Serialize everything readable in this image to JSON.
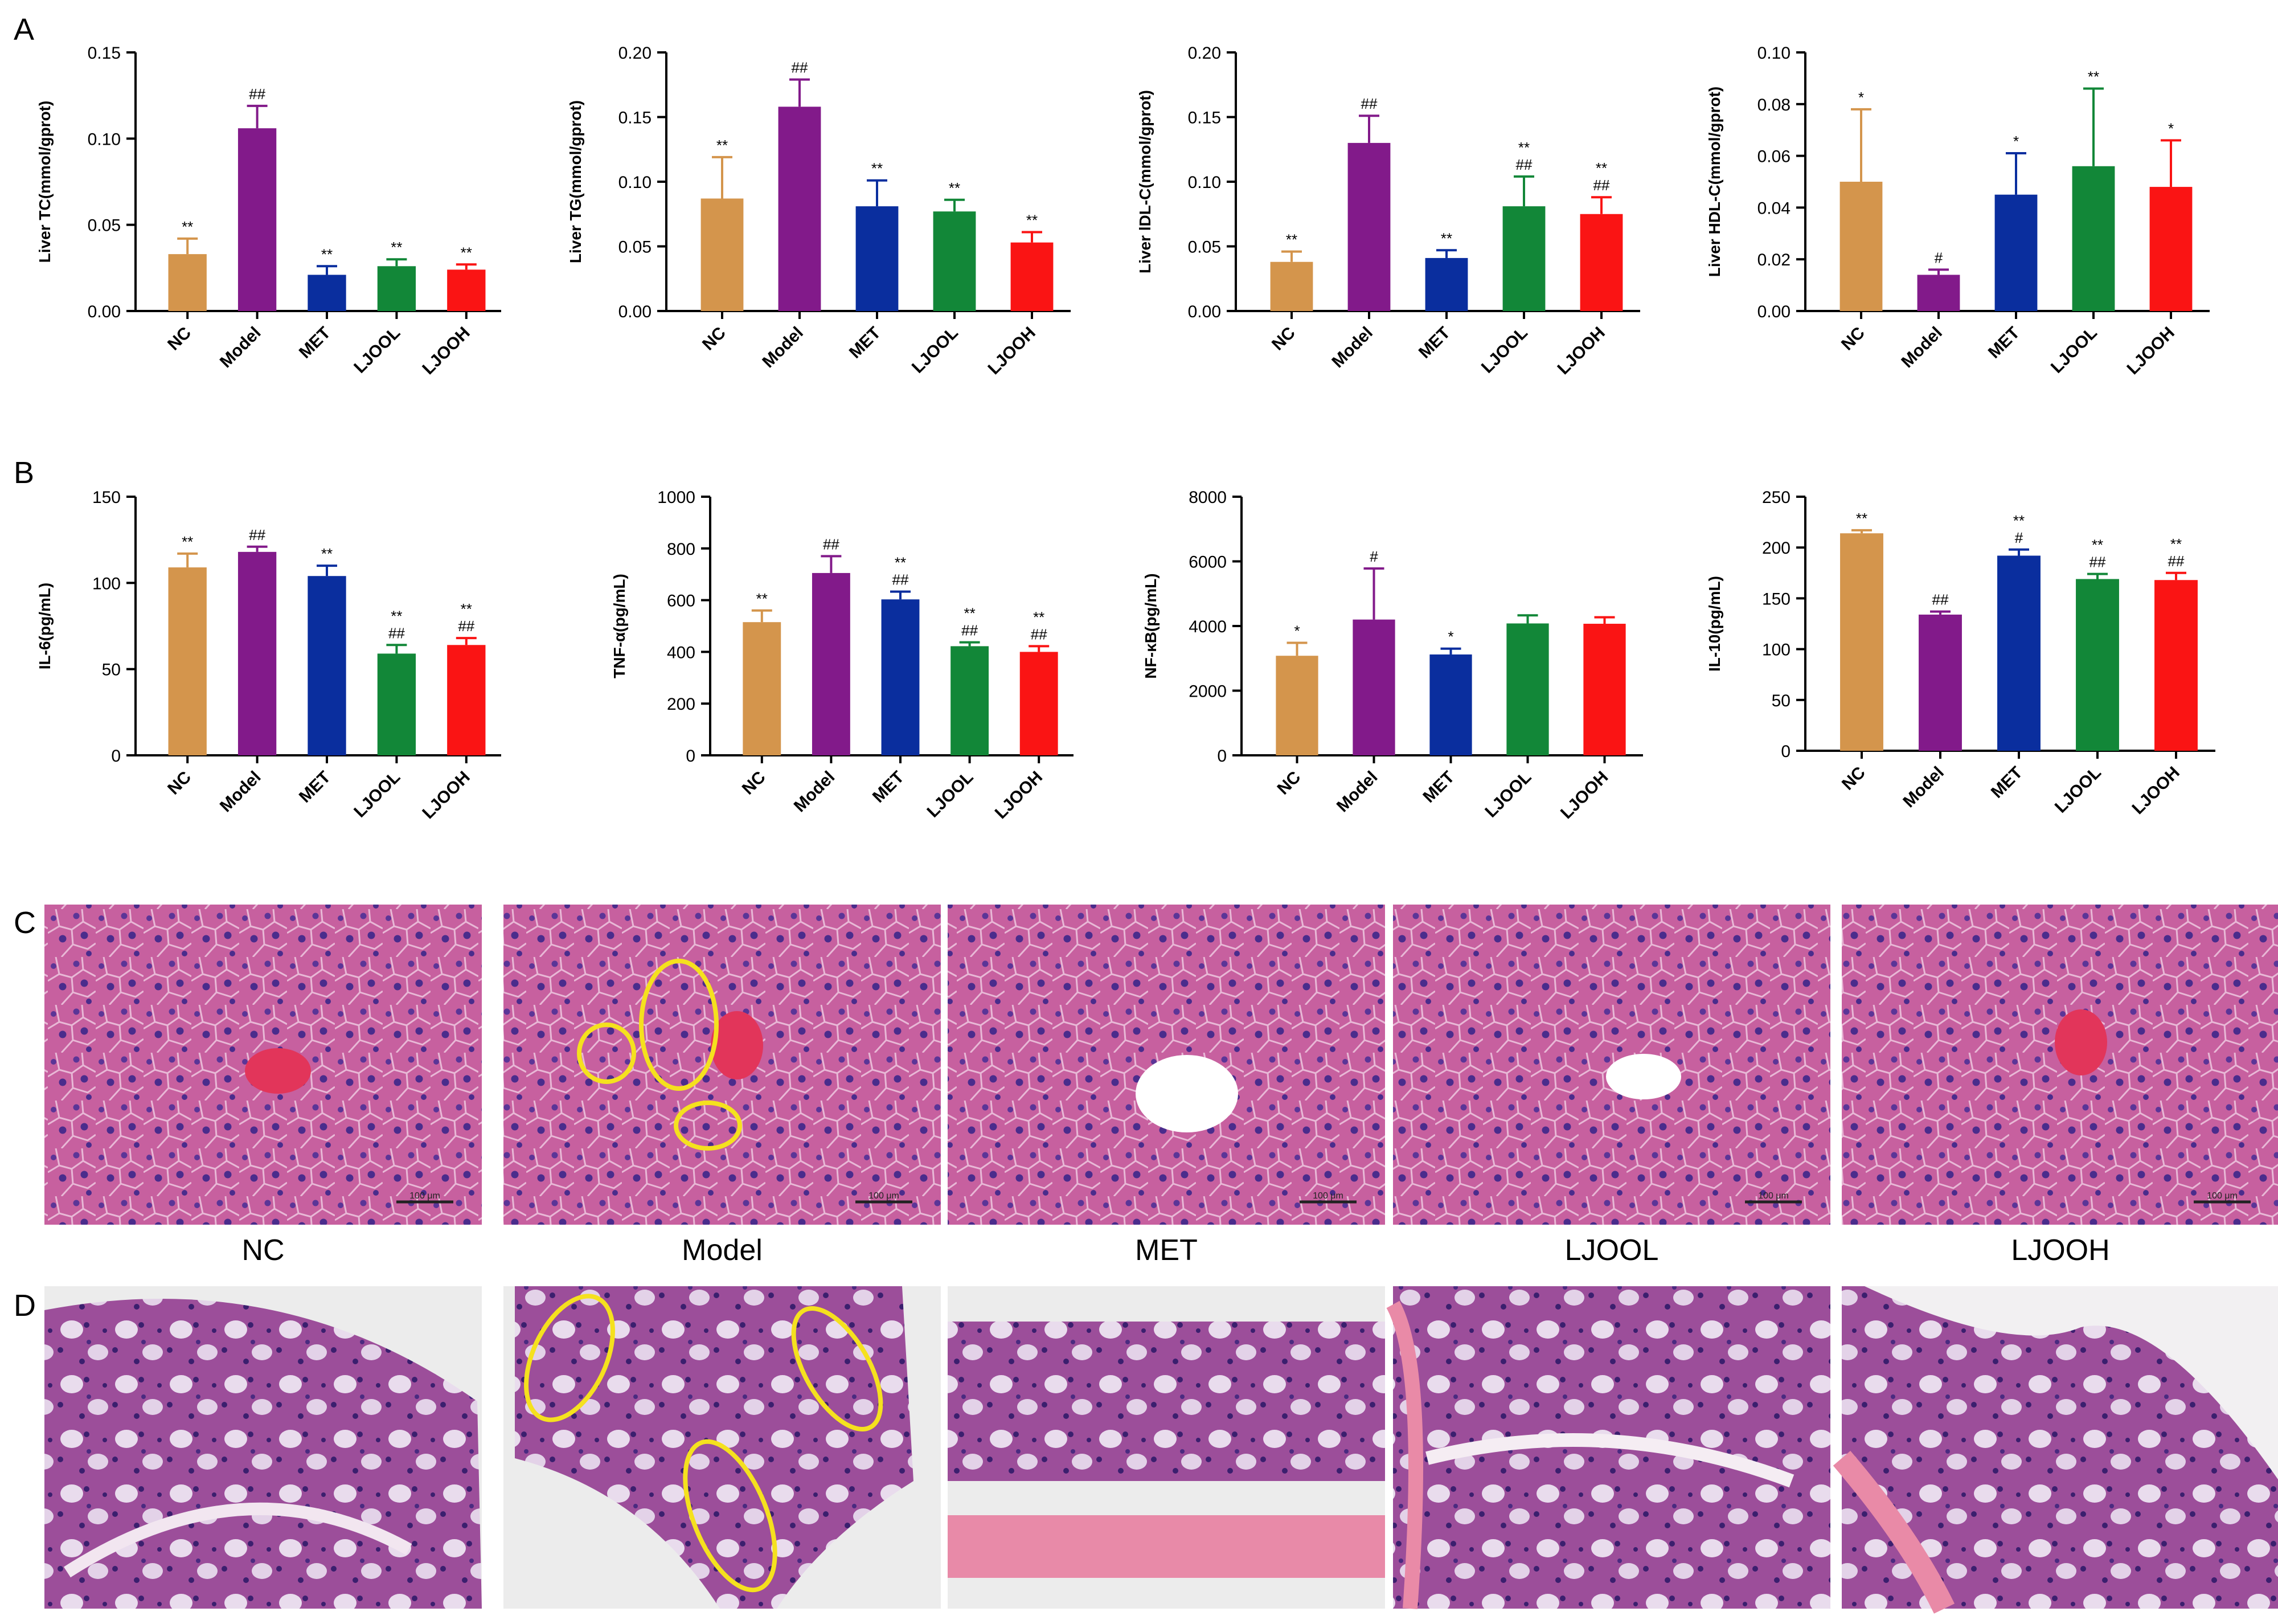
{
  "panel_letters": [
    "A",
    "B",
    "C",
    "D"
  ],
  "micrograph_labels": [
    "NC",
    "Model",
    "MET",
    "LJOOL",
    "LJOOH"
  ],
  "scale_bar_text": "100 μm",
  "colors": {
    "NC": "#d4954c",
    "Model": "#821a8a",
    "MET": "#0a2e9e",
    "LJOOL": "#128738",
    "LJOOH": "#fa1414",
    "annotation_circle": "#f5e11e",
    "liver_tissue": "#c25a9a",
    "colon_tissue": "#a85a9e"
  },
  "chart_data": [
    {
      "type": "bar",
      "title": "",
      "ylabel": "Liver TC(mmol/gprot)",
      "categories": [
        "NC",
        "Model",
        "MET",
        "LJOOL",
        "LJOOH"
      ],
      "values": [
        0.033,
        0.106,
        0.021,
        0.026,
        0.024
      ],
      "errors": [
        0.009,
        0.013,
        0.005,
        0.004,
        0.003
      ],
      "annotations": [
        [
          "**"
        ],
        [
          "##"
        ],
        [
          "**"
        ],
        [
          "**"
        ],
        [
          "**"
        ]
      ],
      "ylim": [
        0,
        0.15
      ],
      "yticks": [
        0,
        0.05,
        0.1,
        0.15
      ],
      "yticklabels": [
        "0.00",
        "0.05",
        "0.10",
        "0.15"
      ]
    },
    {
      "type": "bar",
      "title": "",
      "ylabel": "Liver TG(mmol/gprot)",
      "categories": [
        "NC",
        "Model",
        "MET",
        "LJOOL",
        "LJOOH"
      ],
      "values": [
        0.087,
        0.158,
        0.081,
        0.077,
        0.053
      ],
      "errors": [
        0.032,
        0.021,
        0.02,
        0.009,
        0.008
      ],
      "annotations": [
        [
          "**"
        ],
        [
          "##"
        ],
        [
          "**"
        ],
        [
          "**"
        ],
        [
          "**"
        ]
      ],
      "ylim": [
        0,
        0.2
      ],
      "yticks": [
        0,
        0.05,
        0.1,
        0.15,
        0.2
      ],
      "yticklabels": [
        "0.00",
        "0.05",
        "0.10",
        "0.15",
        "0.20"
      ]
    },
    {
      "type": "bar",
      "title": "",
      "ylabel": "Liver lDL-C(mmol/gprot)",
      "categories": [
        "NC",
        "Model",
        "MET",
        "LJOOL",
        "LJOOH"
      ],
      "values": [
        0.038,
        0.13,
        0.041,
        0.081,
        0.075
      ],
      "errors": [
        0.008,
        0.021,
        0.006,
        0.023,
        0.013
      ],
      "annotations": [
        [
          "**"
        ],
        [
          "##"
        ],
        [
          "**"
        ],
        [
          "##",
          "**"
        ],
        [
          "##",
          "**"
        ]
      ],
      "ylim": [
        0,
        0.2
      ],
      "yticks": [
        0,
        0.05,
        0.1,
        0.15,
        0.2
      ],
      "yticklabels": [
        "0.00",
        "0.05",
        "0.10",
        "0.15",
        "0.20"
      ]
    },
    {
      "type": "bar",
      "title": "",
      "ylabel": "Liver HDL-C(mmol/gprot)",
      "categories": [
        "NC",
        "Model",
        "MET",
        "LJOOL",
        "LJOOH"
      ],
      "values": [
        0.05,
        0.014,
        0.045,
        0.056,
        0.048
      ],
      "errors": [
        0.028,
        0.002,
        0.016,
        0.03,
        0.018
      ],
      "annotations": [
        [
          "*"
        ],
        [
          "#"
        ],
        [
          "*"
        ],
        [
          "**"
        ],
        [
          "*"
        ]
      ],
      "ylim": [
        0,
        0.1
      ],
      "yticks": [
        0,
        0.02,
        0.04,
        0.06,
        0.08,
        0.1
      ],
      "yticklabels": [
        "0.00",
        "0.02",
        "0.04",
        "0.06",
        "0.08",
        "0.10"
      ]
    },
    {
      "type": "bar",
      "title": "",
      "ylabel": "IL-6(pg/mL)",
      "categories": [
        "NC",
        "Model",
        "MET",
        "LJOOL",
        "LJOOH"
      ],
      "values": [
        109,
        118,
        104,
        59,
        64
      ],
      "errors": [
        8,
        3,
        6,
        5,
        4
      ],
      "annotations": [
        [
          "**"
        ],
        [
          "##"
        ],
        [
          "**"
        ],
        [
          "##",
          "**"
        ],
        [
          "##",
          "**"
        ]
      ],
      "ylim": [
        0,
        150
      ],
      "yticks": [
        0,
        50,
        100,
        150
      ],
      "yticklabels": [
        "0",
        "50",
        "100",
        "150"
      ]
    },
    {
      "type": "bar",
      "title": "",
      "ylabel": "TNF-α(pg/mL)",
      "categories": [
        "NC",
        "Model",
        "MET",
        "LJOOL",
        "LJOOH"
      ],
      "values": [
        515,
        705,
        603,
        422,
        400
      ],
      "errors": [
        45,
        65,
        30,
        15,
        22
      ],
      "annotations": [
        [
          "**"
        ],
        [
          "##"
        ],
        [
          "##",
          "**"
        ],
        [
          "##",
          "**"
        ],
        [
          "##",
          "**"
        ]
      ],
      "ylim": [
        0,
        1000
      ],
      "yticks": [
        0,
        200,
        400,
        600,
        800,
        1000
      ],
      "yticklabels": [
        "0",
        "200",
        "400",
        "600",
        "800",
        "1000"
      ]
    },
    {
      "type": "bar",
      "title": "",
      "ylabel": "NF-κB(pg/mL)",
      "categories": [
        "NC",
        "Model",
        "MET",
        "LJOOL",
        "LJOOH"
      ],
      "values": [
        3080,
        4200,
        3120,
        4080,
        4070
      ],
      "errors": [
        400,
        1580,
        180,
        250,
        200
      ],
      "annotations": [
        [
          "*"
        ],
        [
          "#"
        ],
        [
          "*"
        ],
        [],
        []
      ],
      "ylim": [
        0,
        8000
      ],
      "yticks": [
        0,
        2000,
        4000,
        6000,
        8000
      ],
      "yticklabels": [
        "0",
        "2000",
        "4000",
        "6000",
        "8000"
      ]
    },
    {
      "type": "bar",
      "title": "",
      "ylabel": "IL-10(pg/mL)",
      "categories": [
        "NC",
        "Model",
        "MET",
        "LJOOL",
        "LJOOH"
      ],
      "values": [
        214,
        134,
        192,
        169,
        168
      ],
      "errors": [
        3,
        3,
        6,
        5,
        7
      ],
      "annotations": [
        [
          "**"
        ],
        [
          "##"
        ],
        [
          "#",
          "**"
        ],
        [
          "##",
          "**"
        ],
        [
          "##",
          "**"
        ]
      ],
      "ylim": [
        0,
        250
      ],
      "yticks": [
        0,
        50,
        100,
        150,
        200,
        250
      ],
      "yticklabels": [
        "0",
        "50",
        "100",
        "150",
        "200",
        "250"
      ]
    }
  ]
}
